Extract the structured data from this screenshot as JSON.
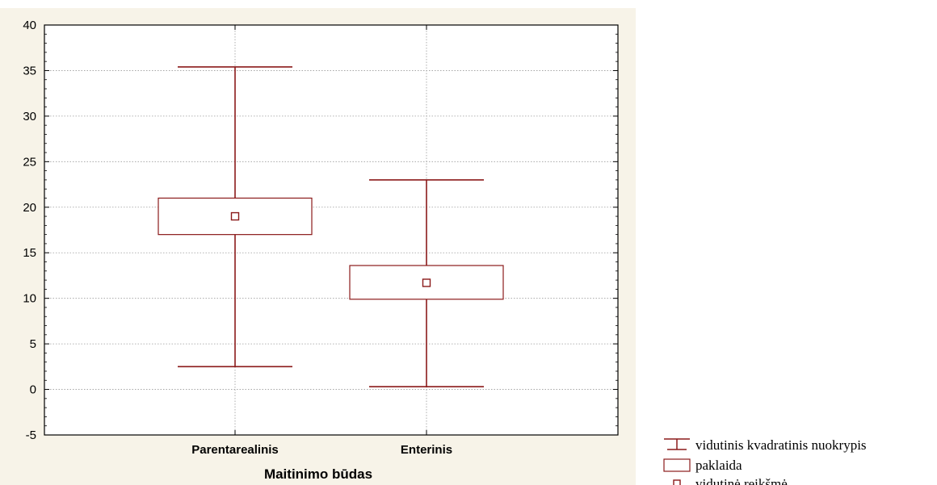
{
  "chart_data": {
    "type": "box",
    "xlabel": "Maitinimo būdas",
    "ylabel": "",
    "ylim": [
      -5,
      40
    ],
    "yticks": [
      -5,
      0,
      5,
      10,
      15,
      20,
      25,
      30,
      35,
      40
    ],
    "grid": true,
    "categories": [
      "Parentarealinis",
      "Enterinis"
    ],
    "series": [
      {
        "category": "Parentarealinis",
        "mean": 19,
        "box_low": 17,
        "box_high": 21,
        "whisker_low": 2.5,
        "whisker_high": 35.4
      },
      {
        "category": "Enterinis",
        "mean": 11.7,
        "box_low": 9.9,
        "box_high": 13.6,
        "whisker_low": 0.3,
        "whisker_high": 23
      }
    ],
    "legend_position": "bottom-right",
    "legend": [
      {
        "symbol": "whisker",
        "label": "vidutinis kvadratinis nuokrypis"
      },
      {
        "symbol": "box",
        "label": "paklaida"
      },
      {
        "symbol": "point",
        "label": "vidutinė reikšmė"
      }
    ],
    "colors": {
      "mark": "#8b1a1a",
      "panel_bg": "#f7f3e8",
      "plot_bg": "#ffffff",
      "grid": "#9a9a9a"
    }
  }
}
